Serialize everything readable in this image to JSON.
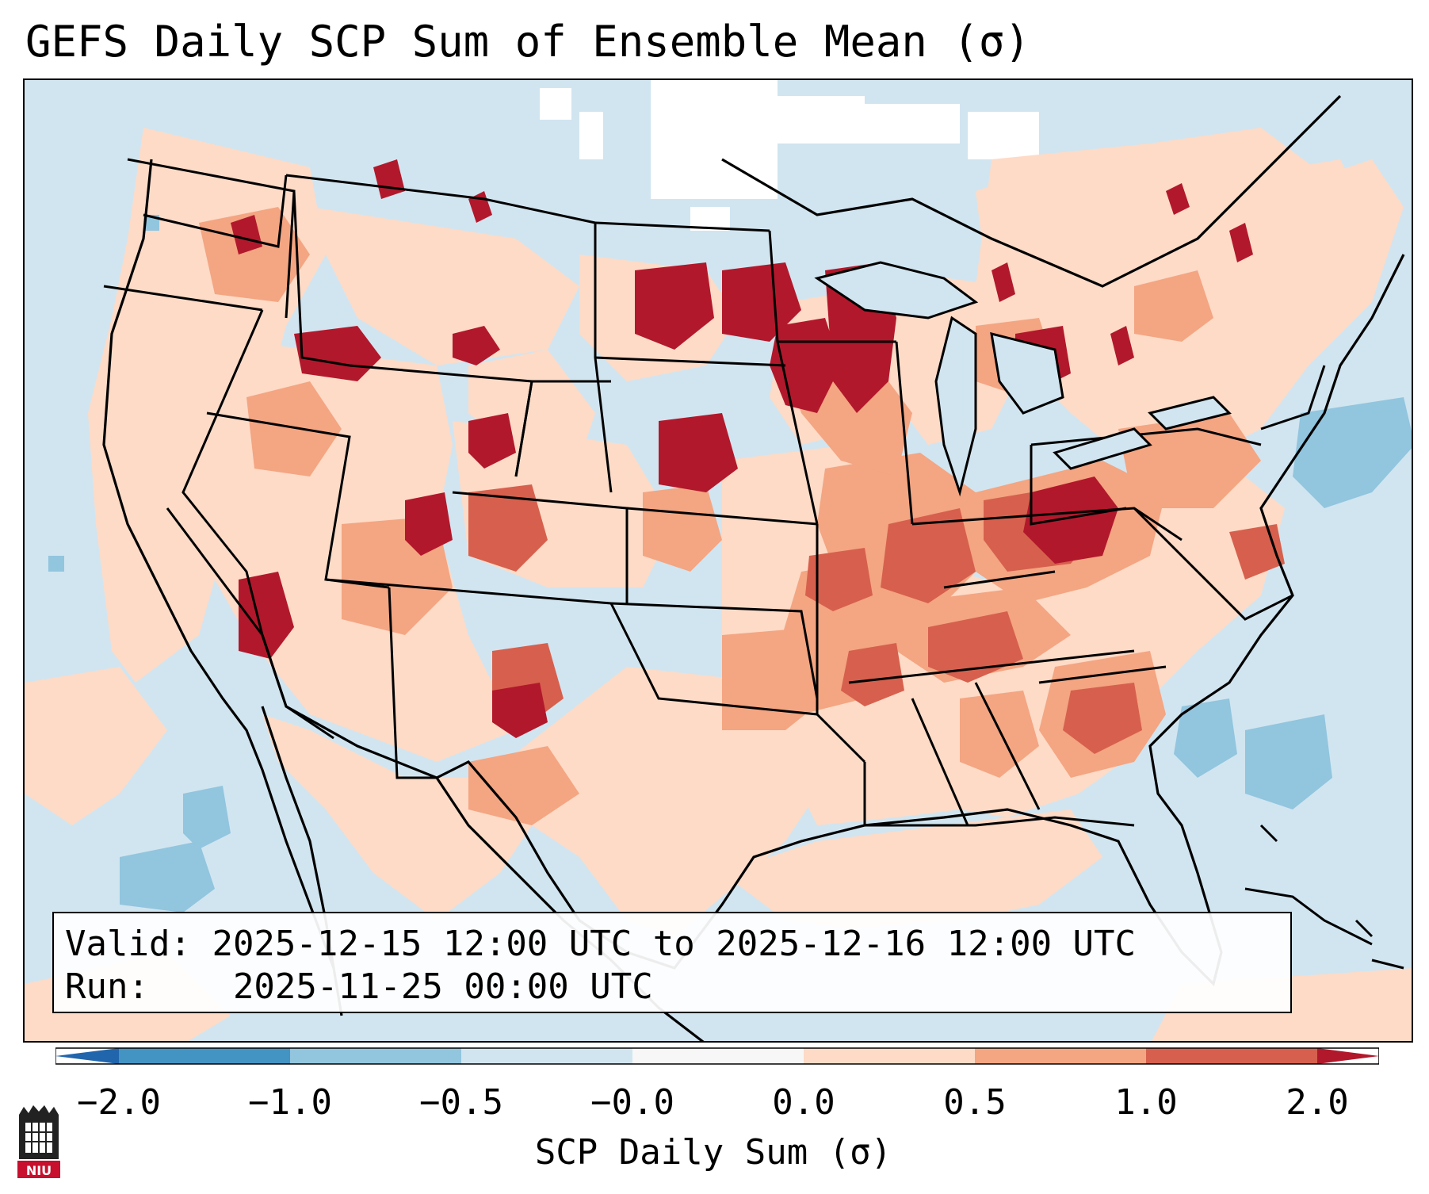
{
  "title": "GEFS Daily SCP Sum of Ensemble Mean (σ)",
  "info": {
    "valid_label": "Valid:",
    "valid_value": "2025-12-15 12:00 UTC to 2025-12-16 12:00 UTC",
    "run_label": "Run:",
    "run_value": "2025-11-25 00:00 UTC"
  },
  "colorbar": {
    "label": "SCP Daily Sum (σ)",
    "ticks": [
      "−2.0",
      "−1.0",
      "−0.5",
      "−0.0",
      "0.0",
      "0.5",
      "1.0",
      "2.0"
    ],
    "colors": [
      "#2166ac",
      "#4393c3",
      "#92c5de",
      "#d1e5f0",
      "#f7f7f7",
      "#fddbc7",
      "#f4a582",
      "#d6604d",
      "#b2182b"
    ]
  },
  "map": {
    "projection": "lambert-conformal",
    "region": "CONUS",
    "background_color": "#d1e5f0",
    "highlights": [
      "Iowa / Minnesota / Wisconsin maxima",
      "Ohio Valley maxima",
      "Southwest (Arizona / New Mexico) maxima",
      "Offshore Atlantic negative anomalies"
    ]
  },
  "logo": {
    "text": "NIU"
  }
}
